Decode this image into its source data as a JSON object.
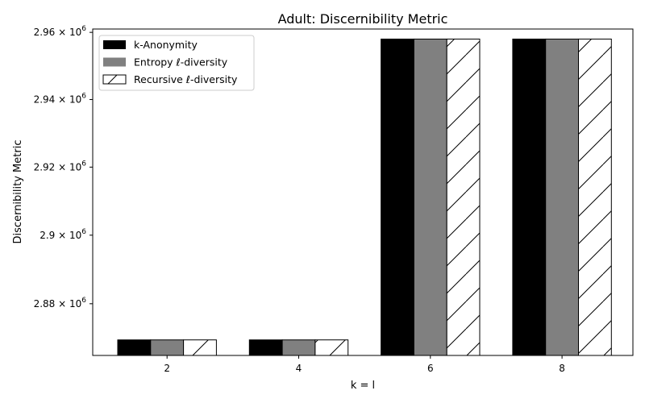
{
  "chart_data": {
    "type": "bar",
    "title": "Adult: Discernibility Metric",
    "xlabel": "k = l",
    "ylabel": "Discernibility Metric",
    "categories": [
      "2",
      "4",
      "6",
      "8"
    ],
    "series": [
      {
        "name": "k-Anonymity",
        "values": [
          2869500,
          2869500,
          2958000,
          2958000
        ],
        "color": "#000000",
        "hatch": false
      },
      {
        "name": "Entropy ℓ-diversity",
        "values": [
          2869500,
          2869500,
          2958000,
          2958000
        ],
        "color": "#808080",
        "hatch": false
      },
      {
        "name": "Recursive ℓ-diversity",
        "values": [
          2869500,
          2869500,
          2958000,
          2958000
        ],
        "color": "#ffffff",
        "hatch": true
      }
    ],
    "ylim": [
      2865000,
      2961000
    ],
    "yscale": "log",
    "y_ticks": [
      {
        "value": 2880000,
        "mantissa": "2.88",
        "base": "10",
        "exp": "6"
      },
      {
        "value": 2900000,
        "mantissa": "2.9",
        "base": "10",
        "exp": "6"
      },
      {
        "value": 2920000,
        "mantissa": "2.92",
        "base": "10",
        "exp": "6"
      },
      {
        "value": 2940000,
        "mantissa": "2.94",
        "base": "10",
        "exp": "6"
      },
      {
        "value": 2960000,
        "mantissa": "2.96",
        "base": "10",
        "exp": "6"
      }
    ],
    "legend_position": "top-left",
    "grid": false
  }
}
